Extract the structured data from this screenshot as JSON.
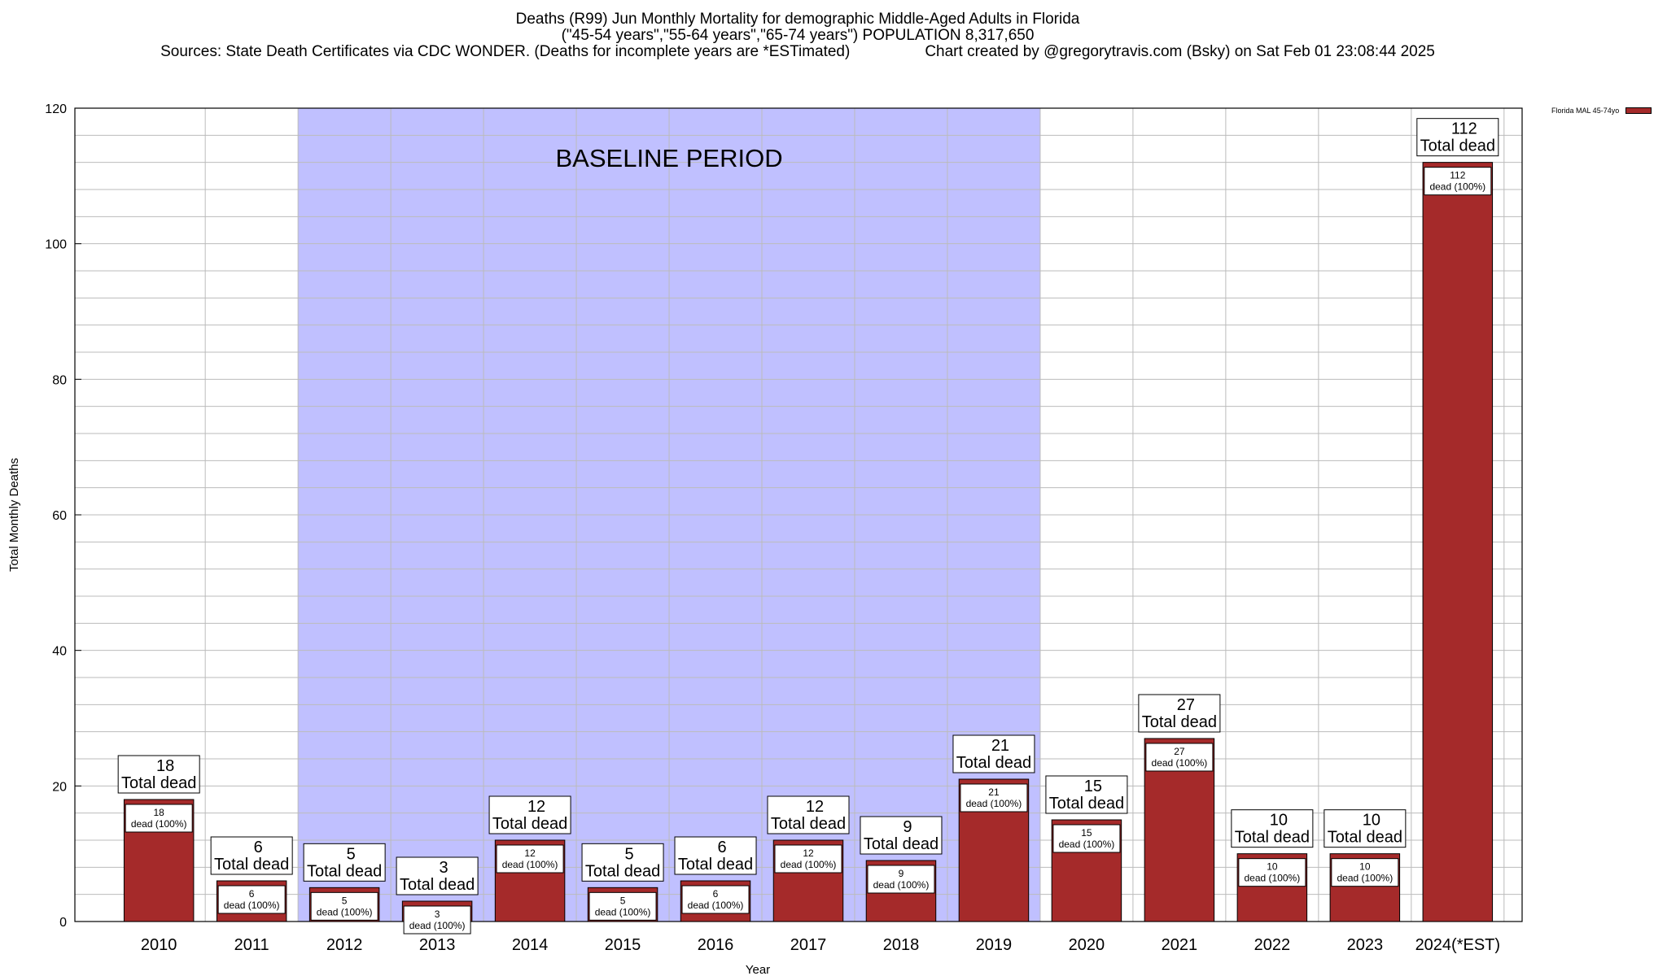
{
  "title": {
    "line1": "Deaths (R99) Jun Monthly Mortality for demographic Middle-Aged Adults in Florida",
    "line2": "(\"45-54 years\",\"55-64 years\",\"65-74 years\") POPULATION 8,317,650",
    "sources": "Sources: State Death Certificates via CDC WONDER. (Deaths for incomplete years are *ESTimated)",
    "credit": "Chart created by @gregorytravis.com (Bsky) on Sat Feb 01 23:08:44 2025"
  },
  "legend": {
    "label": "Florida MAL 45-74yo",
    "color": "#a52a2a"
  },
  "colors": {
    "bar": "#a52a2a",
    "baseline": "#c0c0ff",
    "grid": "#bbbbbb"
  },
  "chart_data": {
    "type": "bar",
    "categories": [
      "2010",
      "2011",
      "2012",
      "2013",
      "2014",
      "2015",
      "2016",
      "2017",
      "2018",
      "2019",
      "2020",
      "2021",
      "2022",
      "2023",
      "2024(*EST)"
    ],
    "values": [
      18,
      6,
      5,
      3,
      12,
      5,
      6,
      12,
      9,
      21,
      15,
      27,
      10,
      10,
      112
    ],
    "title": "Deaths (R99) Jun Monthly Mortality for demographic Middle-Aged Adults in Florida",
    "xlabel": "Year",
    "ylabel": "Total Monthly Deaths",
    "ylim": [
      0,
      120
    ],
    "yticks": [
      0,
      20,
      40,
      60,
      80,
      100,
      120
    ],
    "grid_step": 4,
    "series": [
      {
        "name": "Florida MAL 45-74yo",
        "values": [
          18,
          6,
          5,
          3,
          12,
          5,
          6,
          12,
          9,
          21,
          15,
          27,
          10,
          10,
          112
        ]
      }
    ],
    "baseline": {
      "label": "BASELINE PERIOD",
      "from": "2012",
      "to": "2019"
    },
    "label_top_text": "Total dead",
    "label_inner_text": "dead (100%)"
  }
}
